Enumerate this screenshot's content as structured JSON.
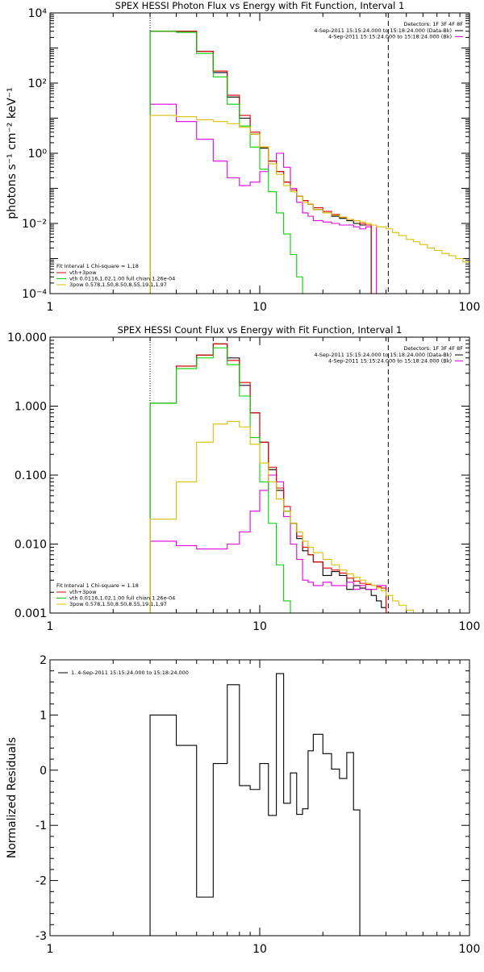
{
  "chart_data": [
    {
      "type": "line",
      "title": "SPEX HESSI Photon Flux vs Energy with Fit Function, Interval 1",
      "xlabel": "",
      "ylabel": "photons s⁻¹ cm⁻² keV⁻¹",
      "xscale": "log",
      "yscale": "log",
      "xlim": [
        1,
        100
      ],
      "ylim": [
        0.0001,
        10000
      ],
      "xtick_values": [
        1,
        10,
        100
      ],
      "xtick_labels": [
        "1",
        "10",
        "100"
      ],
      "ytick_values": [
        0.0001,
        0.01,
        1,
        100,
        10000
      ],
      "ytick_labels": [
        "10⁻⁴",
        "10⁻²",
        "10⁰",
        "10²",
        "10⁴"
      ],
      "bin_edges": [
        3,
        4,
        5,
        6,
        7,
        8,
        9,
        10,
        11,
        12,
        13,
        14,
        15,
        16,
        17,
        18,
        20,
        22,
        24,
        26,
        28,
        30,
        32,
        34,
        36,
        38,
        40,
        43,
        46,
        50,
        54,
        58,
        63,
        68,
        74,
        80,
        86,
        93,
        100
      ],
      "legend_right": {
        "placement": "top-right",
        "header": "Detectors: 1F 3F 4F 8F",
        "entries": [
          {
            "label": "4-Sep-2011 15:15:24.000 to 15:18:24.000 (Data-Bk)",
            "color": "#000000"
          },
          {
            "label": "4-Sep-2011 15:15:24.000 to 15:18:24.000 (Bk)",
            "color": "#e000e0"
          }
        ]
      },
      "legend_left": {
        "placement": "bottom-left",
        "header": "Fit Interval 1   Chi-square = 1.18",
        "entries": [
          {
            "label": "vth+3pow",
            "color": "#e00000"
          },
          {
            "label": "vth 0.0116,1.02,1.00  full chian 1.26e-04",
            "color": "#00d000"
          },
          {
            "label": "3pow 0.578,1.50,8.50,8.55,19.1,1.97",
            "color": "#d8c000"
          }
        ]
      },
      "vlines": [
        {
          "x": 3,
          "style": "dotted"
        },
        {
          "x": 41,
          "style": "dashed"
        }
      ],
      "series": [
        {
          "color": "#000000",
          "values": [
            3000,
            3000,
            800,
            200,
            40,
            10,
            3.5,
            1.4,
            0.6,
            0.3,
            0.15,
            0.09,
            0.06,
            0.045,
            0.035,
            0.025,
            0.02,
            0.016,
            0.014,
            0.012,
            0.01,
            0.009,
            0.009
          ]
        },
        {
          "color": "#e000e0",
          "values": [
            25,
            8,
            2.5,
            0.6,
            0.2,
            0.12,
            0.15,
            0.3,
            0.6,
            1,
            0.4,
            0.1,
            0.04,
            0.02,
            0.016,
            0.012,
            0.011,
            0.01,
            0.009,
            0.009,
            0.008,
            0.007,
            0.008,
            0.009
          ]
        },
        {
          "color": "#e00000",
          "values": [
            3000,
            3000,
            800,
            220,
            45,
            12,
            4,
            1.5,
            0.6,
            0.3,
            0.15,
            0.09,
            0.06,
            0.045,
            0.035,
            0.028,
            0.022,
            0.018,
            0.015,
            0.013,
            0.012,
            0.01,
            0.009
          ]
        },
        {
          "color": "#00d000",
          "values": [
            3000,
            2800,
            700,
            150,
            25,
            6,
            1.5,
            0.35,
            0.08,
            0.02,
            0.005,
            0.0013,
            0.0003,
            7e-05
          ]
        },
        {
          "color": "#d8c000",
          "values": [
            12,
            11,
            9,
            8,
            7,
            5.5,
            3.5,
            1.5,
            0.5,
            0.25,
            0.12,
            0.08,
            0.06,
            0.04,
            0.035,
            0.025,
            0.02,
            0.017,
            0.015,
            0.013,
            0.012,
            0.011,
            0.01,
            0.009,
            0.008,
            0.008,
            0.007,
            0.0055,
            0.0045,
            0.0035,
            0.003,
            0.0025,
            0.002,
            0.0017,
            0.0014,
            0.0012,
            0.001,
            0.0008
          ]
        }
      ]
    },
    {
      "type": "line",
      "title": "SPEX HESSI Count Flux vs Energy with Fit Function, Interval 1",
      "xlabel": "",
      "ylabel": "",
      "xscale": "log",
      "yscale": "log",
      "xlim": [
        1,
        100
      ],
      "ylim": [
        0.001,
        10
      ],
      "xtick_values": [
        1,
        10,
        100
      ],
      "xtick_labels": [
        "1",
        "10",
        "100"
      ],
      "ytick_values": [
        0.001,
        0.01,
        0.1,
        1,
        10
      ],
      "ytick_labels": [
        "0.001",
        "0.010",
        "0.100",
        "1.000",
        "10.000"
      ],
      "bin_edges": [
        3,
        4,
        5,
        6,
        7,
        8,
        9,
        10,
        11,
        12,
        13,
        14,
        15,
        16,
        17,
        18,
        20,
        22,
        24,
        26,
        28,
        30,
        32,
        34,
        36,
        38,
        40,
        43,
        46,
        50,
        54,
        58,
        63,
        68,
        74,
        80,
        86,
        93,
        100
      ],
      "legend_right": {
        "placement": "top-right",
        "header": "Detectors: 1F 3F 4F 8F",
        "entries": [
          {
            "label": "4-Sep-2011 15:15:24.000 to 15:18:24.000 (Data-Bk)",
            "color": "#000000"
          },
          {
            "label": "4-Sep-2011 15:15:24.000 to 15:18:24.000 (Bk)",
            "color": "#e000e0"
          }
        ]
      },
      "legend_left": {
        "placement": "bottom-left",
        "header": "Fit Interval 1   Chi-square = 1.18",
        "entries": [
          {
            "label": "vth+3pow",
            "color": "#e00000"
          },
          {
            "label": "vth 0.0116,1.02,1.00  full chian 1.26e-04",
            "color": "#00d000"
          },
          {
            "label": "3pow 0.578,1.50,8.50,8.55,19.1,1.97",
            "color": "#d8c000"
          }
        ]
      },
      "vlines": [
        {
          "x": 3,
          "style": "dotted"
        },
        {
          "x": 41,
          "style": "dashed"
        }
      ],
      "series": [
        {
          "color": "#000000",
          "values": [
            1.1,
            3.8,
            5.5,
            8.0,
            5.0,
            2.0,
            0.8,
            0.3,
            0.12,
            0.06,
            0.03,
            0.02,
            0.012,
            0.008,
            0.007,
            0.0055,
            0.0035,
            0.004,
            0.0035,
            0.0022,
            0.0025,
            0.0023,
            0.0022,
            0.0018,
            0.0015,
            0.0012
          ]
        },
        {
          "color": "#e000e0",
          "values": [
            0.011,
            0.0095,
            0.0085,
            0.0085,
            0.01,
            0.015,
            0.03,
            0.06,
            0.1,
            0.08,
            0.025,
            0.01,
            0.006,
            0.003,
            0.0028,
            0.0025,
            0.0028,
            0.0025,
            0.0025,
            0.0028,
            0.0022,
            0.0025,
            0.0022,
            0.0022,
            0.0025,
            0.0025
          ]
        },
        {
          "color": "#e00000",
          "values": [
            1.1,
            3.8,
            5.5,
            8.0,
            4.6,
            2.2,
            0.8,
            0.3,
            0.13,
            0.065,
            0.035,
            0.02,
            0.013,
            0.009,
            0.007,
            0.0055,
            0.0045,
            0.0042,
            0.0038,
            0.0032,
            0.0029,
            0.0027,
            0.0026,
            0.0025,
            0.0024,
            0.0023
          ]
        },
        {
          "color": "#00d000",
          "values": [
            1.1,
            3.5,
            5.0,
            7.0,
            4.0,
            1.4,
            0.35,
            0.08,
            0.02,
            0.005,
            0.0015,
            0.0007
          ]
        },
        {
          "color": "#d8c000",
          "values": [
            0.023,
            0.08,
            0.3,
            0.55,
            0.6,
            0.5,
            0.28,
            0.15,
            0.08,
            0.045,
            0.03,
            0.02,
            0.015,
            0.011,
            0.009,
            0.0075,
            0.006,
            0.005,
            0.0042,
            0.0037,
            0.0033,
            0.003,
            0.0027,
            0.0025,
            0.0023,
            0.0021,
            0.0018,
            0.0015,
            0.0013,
            0.0011,
            0.001,
            0.0009
          ]
        }
      ]
    },
    {
      "type": "line",
      "title": "",
      "xlabel": "",
      "ylabel": "Normalized Residuals",
      "xscale": "log",
      "yscale": "linear",
      "xlim": [
        1,
        100
      ],
      "ylim": [
        -3,
        2
      ],
      "xtick_values": [
        1,
        10,
        100
      ],
      "xtick_labels": [
        "1",
        "10",
        "100"
      ],
      "ytick_values": [
        -3,
        -2,
        -1,
        0,
        1,
        2
      ],
      "ytick_labels": [
        "-3",
        "-2",
        "-1",
        "0",
        "1",
        "2"
      ],
      "bin_edges": [
        3,
        4,
        5,
        6,
        7,
        8,
        9,
        10,
        11,
        12,
        13,
        14,
        15,
        16,
        17,
        18,
        20,
        22,
        24,
        26,
        28,
        30,
        32,
        34,
        36,
        38,
        40
      ],
      "legend_left": {
        "placement": "top-left",
        "header": "",
        "entries": [
          {
            "label": "1.  4-Sep-2011 15:15:24.000 to 15:18:24.000",
            "color": "#000000"
          }
        ]
      },
      "residual_floor": -3,
      "series": [
        {
          "color": "#000000",
          "values": [
            1.0,
            0.45,
            -2.3,
            0.12,
            1.55,
            -0.28,
            -0.35,
            0.12,
            -0.82,
            1.75,
            -0.6,
            -0.05,
            -0.8,
            -0.7,
            0.35,
            0.65,
            0.3,
            0.02,
            -0.15,
            0.32,
            -0.72
          ]
        }
      ]
    }
  ]
}
